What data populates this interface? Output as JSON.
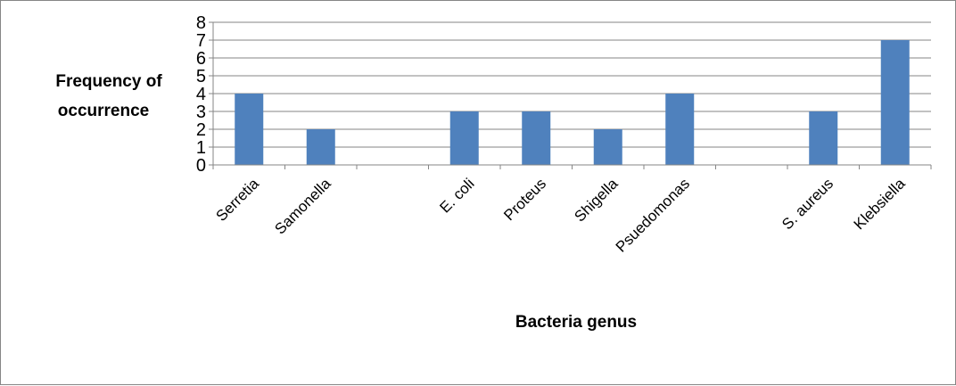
{
  "chart_data": {
    "type": "bar",
    "categories": [
      "Serretia",
      "Samonella",
      "",
      "E. coli",
      "Proteus",
      "Shigella",
      "Psuedomonas",
      "",
      "S. aureus",
      "Klebsiella"
    ],
    "values": [
      4,
      2,
      0,
      3,
      3,
      2,
      4,
      0,
      3,
      7
    ],
    "xlabel": "Bacteria  genus",
    "ylabel_lines": [
      "Frequency of",
      "occurrence"
    ],
    "ylim": [
      0,
      8
    ],
    "yticks": [
      0,
      1,
      2,
      3,
      4,
      5,
      6,
      7,
      8
    ],
    "grid": true,
    "legend": "none",
    "bar_color": "#4f81bd"
  }
}
